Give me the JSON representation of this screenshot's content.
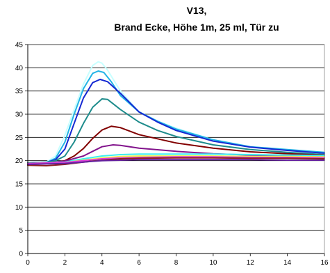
{
  "chart_data": {
    "type": "line",
    "title_line1": "V13,",
    "title_line2": "Brand Ecke, Höhe 1m, 25 ml, Tür zu",
    "xlabel": "",
    "ylabel": "",
    "xlim": [
      0,
      16
    ],
    "ylim": [
      0,
      45
    ],
    "xticks": [
      "0",
      "2",
      "4",
      "6",
      "8",
      "10",
      "12",
      "14",
      "16"
    ],
    "yticks": [
      "0",
      "5",
      "10",
      "15",
      "20",
      "25",
      "30",
      "35",
      "40",
      "45"
    ],
    "grid": "horizontal",
    "legend": "none",
    "series": [
      {
        "color": "#c8ffff",
        "points": [
          [
            0,
            19.5
          ],
          [
            1,
            19.7
          ],
          [
            1.5,
            21
          ],
          [
            2,
            25.5
          ],
          [
            2.5,
            31
          ],
          [
            3,
            36.5
          ],
          [
            3.5,
            40.5
          ],
          [
            3.8,
            41.3
          ],
          [
            4,
            41
          ],
          [
            4.3,
            39.5
          ],
          [
            5,
            35
          ],
          [
            6,
            30.5
          ],
          [
            7,
            28.5
          ],
          [
            8,
            27
          ],
          [
            10,
            24.5
          ],
          [
            12,
            23
          ],
          [
            14,
            22.3
          ],
          [
            16,
            21.8
          ]
        ]
      },
      {
        "color": "#22b4e6",
        "points": [
          [
            0,
            19.5
          ],
          [
            1,
            19.6
          ],
          [
            1.5,
            20.5
          ],
          [
            2,
            24
          ],
          [
            2.5,
            30
          ],
          [
            3,
            35.5
          ],
          [
            3.5,
            38.8
          ],
          [
            3.8,
            39.3
          ],
          [
            4.1,
            39
          ],
          [
            4.5,
            37
          ],
          [
            5,
            34
          ],
          [
            6,
            30.5
          ],
          [
            7,
            28.5
          ],
          [
            8,
            26.8
          ],
          [
            10,
            24.5
          ],
          [
            12,
            23
          ],
          [
            14,
            22.4
          ],
          [
            16,
            21.8
          ]
        ]
      },
      {
        "color": "#1428d2",
        "points": [
          [
            0,
            19.5
          ],
          [
            1,
            19.6
          ],
          [
            1.5,
            20.2
          ],
          [
            2,
            22.5
          ],
          [
            2.5,
            28
          ],
          [
            3,
            33.5
          ],
          [
            3.5,
            36.8
          ],
          [
            3.9,
            37.5
          ],
          [
            4.3,
            37
          ],
          [
            5,
            34.5
          ],
          [
            6,
            30.5
          ],
          [
            7,
            28.3
          ],
          [
            8,
            26.5
          ],
          [
            10,
            24.2
          ],
          [
            12,
            22.9
          ],
          [
            14,
            22.2
          ],
          [
            16,
            21.6
          ]
        ]
      },
      {
        "color": "#1e8c8c",
        "points": [
          [
            0,
            19.5
          ],
          [
            1,
            19.6
          ],
          [
            1.5,
            20
          ],
          [
            2,
            21
          ],
          [
            2.5,
            24
          ],
          [
            3,
            28
          ],
          [
            3.5,
            31.5
          ],
          [
            4,
            33.3
          ],
          [
            4.3,
            33.2
          ],
          [
            5,
            31
          ],
          [
            6,
            28.3
          ],
          [
            7,
            26.5
          ],
          [
            8,
            25.2
          ],
          [
            10,
            23.4
          ],
          [
            12,
            22.4
          ],
          [
            14,
            21.8
          ],
          [
            16,
            21.3
          ]
        ]
      },
      {
        "color": "#820000",
        "points": [
          [
            0,
            19.2
          ],
          [
            1,
            19.3
          ],
          [
            2,
            20
          ],
          [
            2.5,
            21
          ],
          [
            3,
            22.6
          ],
          [
            3.5,
            24.8
          ],
          [
            4,
            26.6
          ],
          [
            4.5,
            27.4
          ],
          [
            5,
            27.1
          ],
          [
            6,
            25.6
          ],
          [
            8,
            23.8
          ],
          [
            10,
            22.7
          ],
          [
            12,
            21.9
          ],
          [
            14,
            21.5
          ],
          [
            16,
            21.2
          ]
        ]
      },
      {
        "color": "#82148c",
        "points": [
          [
            0,
            19.4
          ],
          [
            1,
            19.5
          ],
          [
            2,
            19.9
          ],
          [
            3,
            21
          ],
          [
            3.5,
            22
          ],
          [
            4,
            23
          ],
          [
            4.6,
            23.4
          ],
          [
            5,
            23.3
          ],
          [
            6,
            22.7
          ],
          [
            8,
            22
          ],
          [
            10,
            21.5
          ],
          [
            12,
            21.2
          ],
          [
            14,
            21
          ],
          [
            16,
            20.8
          ]
        ]
      },
      {
        "color": "#3cf0f0",
        "points": [
          [
            0,
            19.4
          ],
          [
            2,
            19.7
          ],
          [
            3,
            20.4
          ],
          [
            4,
            21
          ],
          [
            5,
            21.3
          ],
          [
            6,
            21.4
          ],
          [
            8,
            21.4
          ],
          [
            10,
            21.4
          ],
          [
            12,
            21.3
          ],
          [
            14,
            21.2
          ],
          [
            16,
            21.1
          ]
        ]
      },
      {
        "color": "#f0f050",
        "points": [
          [
            0,
            19.4
          ],
          [
            2,
            19.6
          ],
          [
            3,
            20.1
          ],
          [
            4,
            20.6
          ],
          [
            5,
            20.9
          ],
          [
            6,
            21
          ],
          [
            8,
            21
          ],
          [
            10,
            21
          ],
          [
            12,
            20.9
          ],
          [
            14,
            20.9
          ],
          [
            16,
            20.8
          ]
        ]
      },
      {
        "color": "#dc3cdc",
        "points": [
          [
            0,
            19.4
          ],
          [
            2,
            19.6
          ],
          [
            3,
            20
          ],
          [
            4,
            20.4
          ],
          [
            5,
            20.6
          ],
          [
            6,
            20.7
          ],
          [
            8,
            20.8
          ],
          [
            10,
            20.8
          ],
          [
            12,
            20.7
          ],
          [
            14,
            20.7
          ],
          [
            16,
            20.6
          ]
        ]
      },
      {
        "color": "#8c2020",
        "points": [
          [
            0,
            19
          ],
          [
            1,
            18.9
          ],
          [
            2,
            19.2
          ],
          [
            3,
            19.7
          ],
          [
            4,
            20.1
          ],
          [
            5,
            20.4
          ],
          [
            6,
            20.5
          ],
          [
            8,
            20.6
          ],
          [
            10,
            20.6
          ],
          [
            12,
            20.5
          ],
          [
            14,
            20.5
          ],
          [
            16,
            20.4
          ]
        ]
      },
      {
        "color": "#6420a0",
        "points": [
          [
            0,
            19.2
          ],
          [
            2,
            19.4
          ],
          [
            3,
            19.7
          ],
          [
            4,
            20
          ],
          [
            5,
            20.1
          ],
          [
            6,
            20.2
          ],
          [
            8,
            20.2
          ],
          [
            10,
            20.2
          ],
          [
            12,
            20.2
          ],
          [
            14,
            20.1
          ],
          [
            16,
            20.1
          ]
        ]
      }
    ]
  }
}
